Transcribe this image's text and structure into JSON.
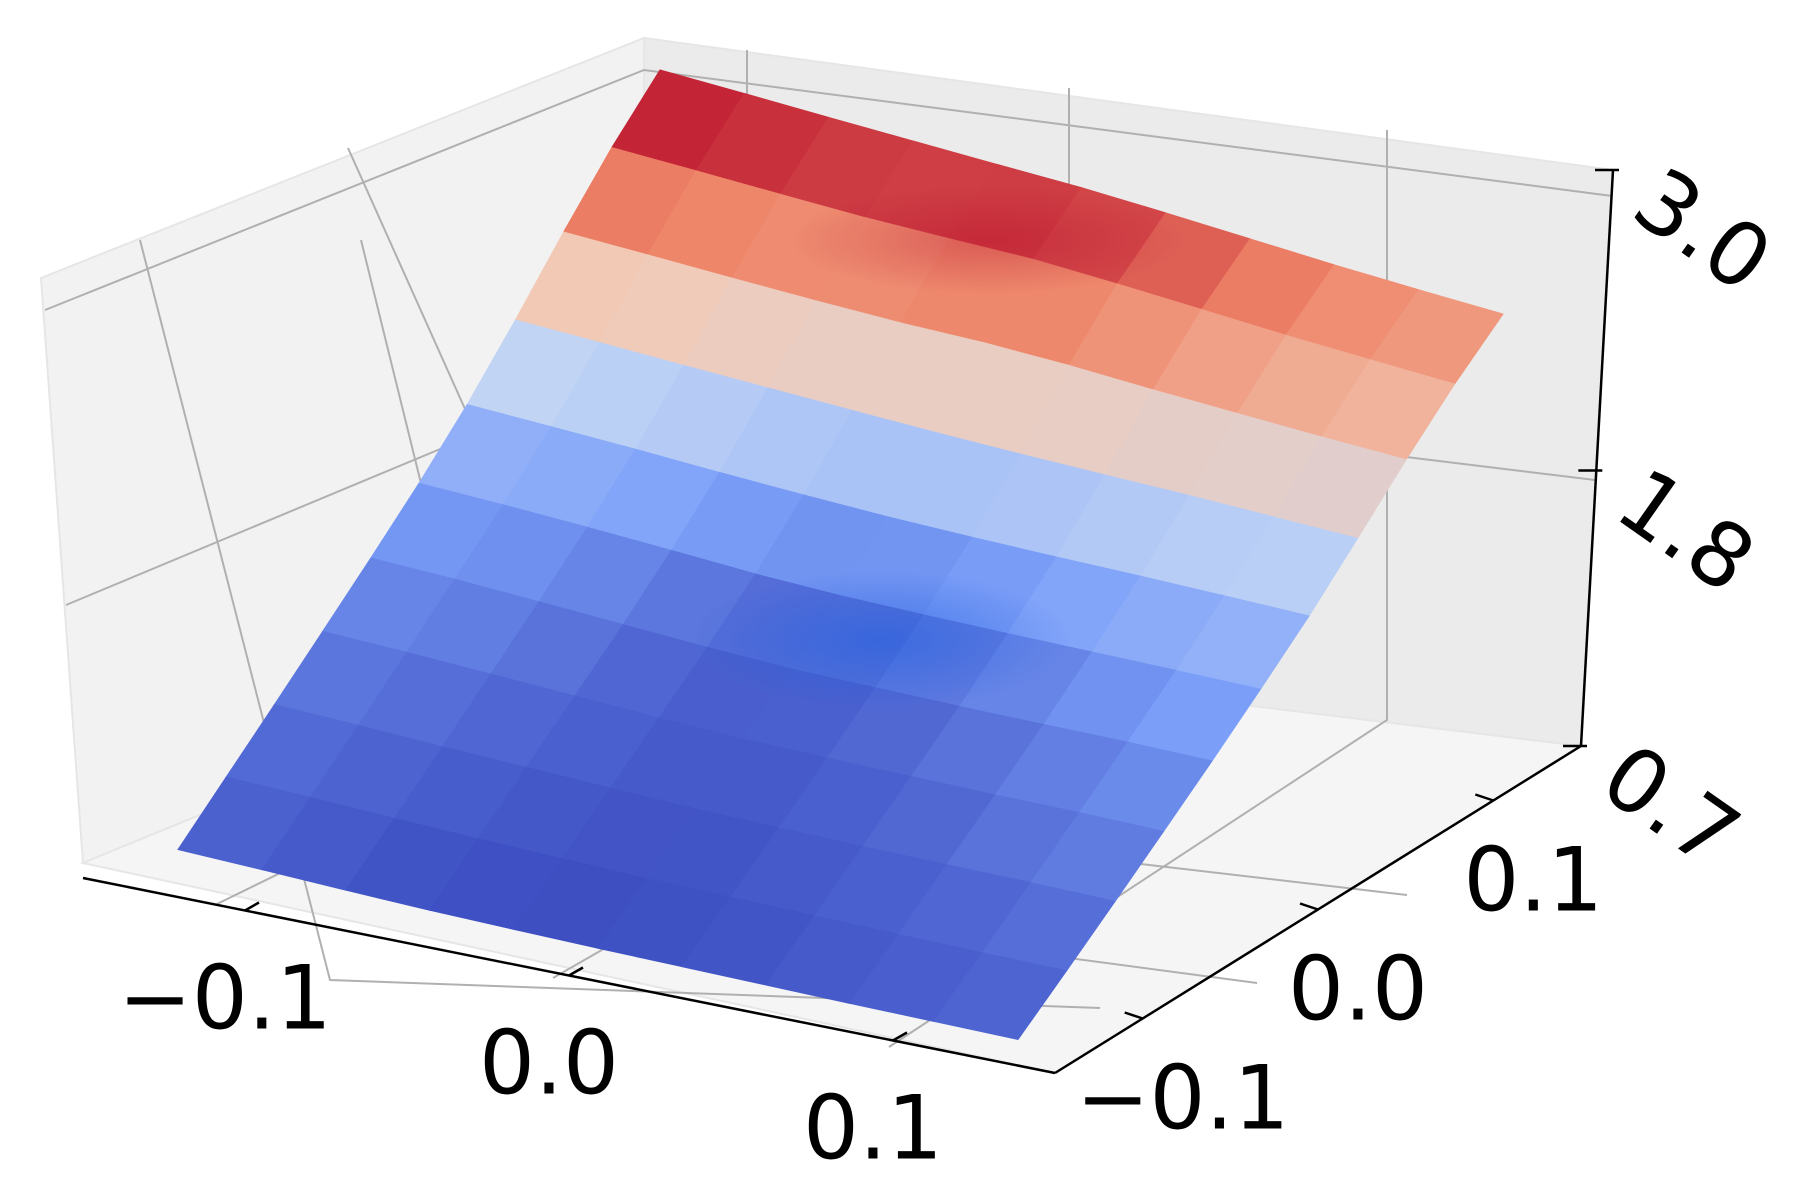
{
  "chart_data": {
    "type": "surface3d",
    "title": "",
    "xlabel": "",
    "ylabel": "",
    "zlabel": "",
    "xlim": [
      -0.15,
      0.15
    ],
    "ylim": [
      -0.15,
      0.15
    ],
    "zlim": [
      0.7,
      3.0
    ],
    "x_ticks": [
      {
        "value": -0.1,
        "label": "−0.1"
      },
      {
        "value": 0.0,
        "label": "0.0"
      },
      {
        "value": 0.1,
        "label": "0.1"
      }
    ],
    "y_ticks": [
      {
        "value": -0.1,
        "label": "−0.1"
      },
      {
        "value": 0.0,
        "label": "0.0"
      },
      {
        "value": 0.1,
        "label": "0.1"
      }
    ],
    "z_ticks": [
      {
        "value": 0.7,
        "label": "0.7"
      },
      {
        "value": 1.8,
        "label": "1.8"
      },
      {
        "value": 3.0,
        "label": "3.0"
      }
    ],
    "grid": true,
    "colormap": "coolwarm",
    "colormap_stops": [
      "#3b4cc0",
      "#7b9ff9",
      "#c0d4f5",
      "#f2cbb7",
      "#ee8468",
      "#b40426"
    ],
    "surface": {
      "grid_size": 11,
      "x": [
        -0.15,
        -0.12,
        -0.09,
        -0.06,
        -0.03,
        0.0,
        0.03,
        0.06,
        0.09,
        0.12,
        0.15
      ],
      "y": [
        -0.15,
        -0.12,
        -0.09,
        -0.06,
        -0.03,
        0.0,
        0.03,
        0.06,
        0.09,
        0.12,
        0.15
      ],
      "z": [
        [
          0.95,
          1.0,
          1.05,
          1.12,
          1.2,
          1.32,
          1.55,
          1.95,
          2.45,
          2.85,
          3.05
        ],
        [
          0.92,
          0.97,
          1.02,
          1.1,
          1.18,
          1.3,
          1.52,
          1.92,
          2.42,
          2.82,
          3.02
        ],
        [
          0.88,
          0.93,
          0.98,
          1.05,
          1.12,
          1.25,
          1.48,
          1.88,
          2.38,
          2.78,
          2.98
        ],
        [
          0.85,
          0.9,
          0.95,
          1.0,
          1.05,
          1.18,
          1.42,
          1.85,
          2.35,
          2.75,
          2.95
        ],
        [
          0.85,
          0.88,
          0.92,
          0.95,
          0.98,
          1.1,
          1.38,
          1.82,
          2.35,
          2.78,
          2.92
        ],
        [
          0.86,
          0.88,
          0.9,
          0.92,
          0.95,
          1.08,
          1.36,
          1.8,
          2.4,
          2.82,
          2.9
        ],
        [
          0.88,
          0.9,
          0.92,
          0.95,
          1.0,
          1.12,
          1.38,
          1.8,
          2.38,
          2.75,
          2.82
        ],
        [
          0.9,
          0.92,
          0.95,
          1.0,
          1.05,
          1.18,
          1.42,
          1.82,
          2.3,
          2.65,
          2.72
        ],
        [
          0.92,
          0.95,
          1.0,
          1.05,
          1.12,
          1.25,
          1.48,
          1.85,
          2.25,
          2.55,
          2.62
        ],
        [
          0.95,
          0.98,
          1.05,
          1.12,
          1.2,
          1.32,
          1.52,
          1.85,
          2.2,
          2.48,
          2.55
        ],
        [
          0.98,
          1.02,
          1.08,
          1.16,
          1.25,
          1.38,
          1.55,
          1.85,
          2.18,
          2.42,
          2.5
        ]
      ]
    }
  }
}
